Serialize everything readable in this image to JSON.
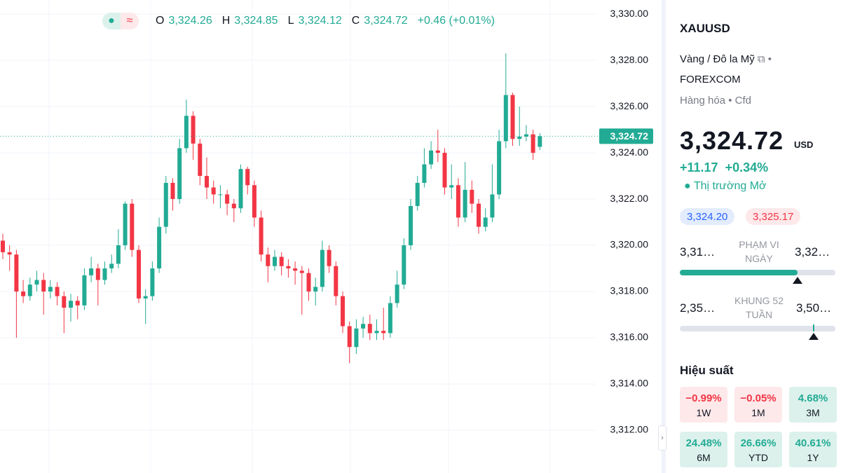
{
  "chart_data": {
    "type": "candlestick",
    "up_color": "#22ab94",
    "down_color": "#f23645",
    "ylim": [
      3310.15,
      3330.61
    ],
    "yticks": [
      {
        "value": 3312,
        "label": "3,312.00"
      },
      {
        "value": 3314,
        "label": "3,314.00"
      },
      {
        "value": 3316,
        "label": "3,316.00"
      },
      {
        "value": 3318,
        "label": "3,318.00"
      },
      {
        "value": 3320,
        "label": "3,320.00"
      },
      {
        "value": 3322,
        "label": "3,322.00"
      },
      {
        "value": 3324,
        "label": "3,324.00"
      },
      {
        "value": 3326,
        "label": "3,326.00"
      },
      {
        "value": 3328,
        "label": "3,328.00"
      },
      {
        "value": 3330,
        "label": "3,330.00"
      }
    ],
    "last_price": {
      "value": 3324.72,
      "label": "3,324.72"
    },
    "open": [
      3320.2,
      3319.7,
      3319.6,
      3318.0,
      3317.8,
      3318.3,
      3318.5,
      3318.0,
      3318.2,
      3317.8,
      3317.3,
      3317.6,
      3317.4,
      3318.7,
      3319.0,
      3318.5,
      3319.0,
      3319.2,
      3320.0,
      3321.8,
      3319.8,
      3317.7,
      3317.8,
      3319.0,
      3320.8,
      3322.7,
      3322.0,
      3324.2,
      3325.6,
      3324.4,
      3323.0,
      3322.5,
      3322.2,
      3322.2,
      3321.8,
      3321.6,
      3323.3,
      3322.6,
      3321.2,
      3319.6,
      3319.1,
      3319.5,
      3319.1,
      3319.0,
      3318.9,
      3318.8,
      3318.0,
      3318.2,
      3319.8,
      3319.1,
      3317.8,
      3316.5,
      3315.6,
      3316.4,
      3316.6,
      3316.2,
      3316.3,
      3316.2,
      3317.5,
      3318.3,
      3320.0,
      3321.7,
      3322.7,
      3323.5,
      3324.1,
      3324.0,
      3322.5,
      3322.6,
      3321.2,
      3322.4,
      3321.8,
      3320.8,
      3321.2,
      3322.2,
      3324.5,
      3326.5,
      3324.6,
      3324.7,
      3324.8,
      3324.26
    ],
    "high": [
      3320.5,
      3320.0,
      3319.8,
      3318.5,
      3318.6,
      3318.9,
      3318.8,
      3318.5,
      3318.4,
      3318.0,
      3317.9,
      3317.8,
      3319.0,
      3319.5,
      3319.2,
      3319.3,
      3319.6,
      3320.7,
      3321.9,
      3322.0,
      3320.0,
      3318.1,
      3319.3,
      3321.2,
      3323.0,
      3322.9,
      3324.6,
      3326.3,
      3325.8,
      3324.6,
      3323.8,
      3322.8,
      3322.6,
      3322.4,
      3322.0,
      3323.5,
      3323.4,
      3322.8,
      3321.5,
      3319.9,
      3319.8,
      3319.7,
      3319.4,
      3319.3,
      3319.1,
      3319.0,
      3318.6,
      3320.2,
      3320.0,
      3319.3,
      3318.0,
      3316.7,
      3316.8,
      3316.9,
      3317.0,
      3316.8,
      3317.3,
      3317.8,
      3318.9,
      3320.3,
      3322.0,
      3323.0,
      3324.2,
      3324.5,
      3325.0,
      3324.2,
      3323.5,
      3322.9,
      3323.6,
      3322.8,
      3322.0,
      3321.6,
      3323.5,
      3325.0,
      3328.3,
      3326.6,
      3326.0,
      3325.2,
      3325.0,
      3324.85
    ],
    "low": [
      3319.4,
      3318.9,
      3316.0,
      3317.5,
      3317.6,
      3318.0,
      3317.0,
      3317.7,
      3317.4,
      3316.2,
      3316.7,
      3316.8,
      3317.2,
      3318.4,
      3317.4,
      3318.3,
      3318.8,
      3319.0,
      3319.8,
      3319.5,
      3317.5,
      3316.6,
      3317.6,
      3318.8,
      3320.5,
      3321.5,
      3321.8,
      3324.0,
      3323.7,
      3322.6,
      3322.0,
      3321.8,
      3321.6,
      3321.3,
      3321.0,
      3321.4,
      3322.2,
      3320.8,
      3319.3,
      3318.4,
      3318.9,
      3318.7,
      3318.6,
      3318.3,
      3317.0,
      3317.6,
      3317.4,
      3318.0,
      3318.8,
      3317.4,
      3316.2,
      3314.9,
      3315.3,
      3316.0,
      3315.9,
      3315.9,
      3315.9,
      3316.0,
      3317.3,
      3318.1,
      3319.8,
      3321.5,
      3322.5,
      3323.3,
      3323.6,
      3322.2,
      3322.0,
      3320.8,
      3321.0,
      3321.4,
      3320.5,
      3320.6,
      3321.0,
      3322.0,
      3324.2,
      3324.3,
      3324.3,
      3324.5,
      3323.7,
      3324.12
    ],
    "close": [
      3319.7,
      3319.6,
      3318.0,
      3317.8,
      3318.3,
      3318.5,
      3318.0,
      3318.2,
      3317.8,
      3317.3,
      3317.6,
      3317.4,
      3318.7,
      3319.0,
      3318.5,
      3319.0,
      3319.2,
      3320.0,
      3321.8,
      3319.8,
      3317.7,
      3317.8,
      3319.0,
      3320.8,
      3322.7,
      3322.0,
      3324.2,
      3325.6,
      3324.4,
      3323.0,
      3322.5,
      3322.2,
      3322.2,
      3321.8,
      3321.6,
      3323.3,
      3322.6,
      3321.2,
      3319.6,
      3319.1,
      3319.5,
      3319.1,
      3319.0,
      3318.9,
      3318.8,
      3318.0,
      3318.2,
      3319.8,
      3319.1,
      3317.8,
      3316.5,
      3315.6,
      3316.4,
      3316.6,
      3316.2,
      3316.3,
      3316.2,
      3317.5,
      3318.3,
      3320.0,
      3321.7,
      3322.7,
      3323.5,
      3324.1,
      3324.0,
      3322.5,
      3322.6,
      3321.2,
      3322.4,
      3321.8,
      3320.8,
      3321.2,
      3322.2,
      3324.5,
      3326.5,
      3324.6,
      3324.7,
      3324.8,
      3324.0,
      3324.72
    ]
  },
  "legend": {
    "o_label": "O",
    "o": "3,324.26",
    "h_label": "H",
    "h": "3,324.85",
    "l_label": "L",
    "l": "3,324.12",
    "c_label": "C",
    "c": "3,324.72",
    "change": "+0.46 (+0.01%)"
  },
  "sidebar": {
    "symbol": "XAUUSD",
    "description": "Vàng / Đô la Mỹ",
    "exchange": "FOREXCOM",
    "category": "Hàng hóa",
    "kind": "Cfd",
    "price": "3,324.72",
    "currency": "USD",
    "change": "+11.17",
    "change_pct": "+0.34%",
    "market_status": "Thị trường Mở",
    "bid": "3,324.20",
    "ask": "3,325.17",
    "day_low": "3,31…",
    "day_label": "PHẠM VI NGÀY",
    "day_high": "3,32…",
    "week_low": "2,35…",
    "week_label": "KHUNG 52 TUẦN",
    "week_high": "3,50…",
    "performance_title": "Hiệu suất",
    "performance": [
      {
        "value": "−0.99%",
        "period": "1W"
      },
      {
        "value": "−0.05%",
        "period": "1M"
      },
      {
        "value": "4.68%",
        "period": "3M"
      },
      {
        "value": "24.48%",
        "period": "6M"
      },
      {
        "value": "26.66%",
        "period": "YTD"
      },
      {
        "value": "40.61%",
        "period": "1Y"
      }
    ]
  }
}
